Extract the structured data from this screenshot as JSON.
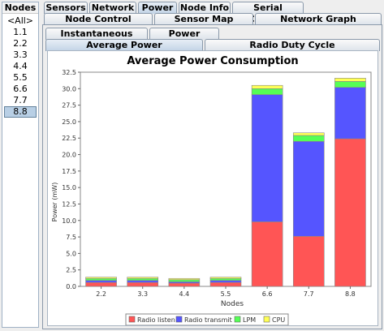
{
  "nodes": {
    "header": "Nodes",
    "items": [
      "<All>",
      "1.1",
      "2.2",
      "3.3",
      "4.4",
      "5.5",
      "6.6",
      "7.7",
      "8.8"
    ],
    "selected": "8.8"
  },
  "tabs_row1": [
    "Sensors",
    "Network",
    "Power",
    "Node Info",
    "Serial Console"
  ],
  "tabs_row1_active": "Power",
  "tabs_row2": [
    "Node Control",
    "Sensor Map",
    "Network Graph"
  ],
  "power_tabs_row1": [
    "Instantaneous Power",
    "Power History"
  ],
  "power_tabs_row2": [
    "Average Power",
    "Radio Duty Cycle"
  ],
  "power_tabs_active": "Average Power",
  "colors": {
    "radio_listen": "#ff5555",
    "radio_transmit": "#5555ff",
    "lpm": "#55ff55",
    "cpu": "#ffff55"
  },
  "chart_data": {
    "type": "bar",
    "title": "Average Power Consumption",
    "xlabel": "Nodes",
    "ylabel": "Power (mW)",
    "categories": [
      "2.2",
      "3.3",
      "4.4",
      "5.5",
      "6.6",
      "7.7",
      "8.8"
    ],
    "stacked": true,
    "ylim": [
      0,
      32.5
    ],
    "yticks": [
      "0.0",
      "2.5",
      "5.0",
      "7.5",
      "10.0",
      "12.5",
      "15.0",
      "17.5",
      "20.0",
      "22.5",
      "25.0",
      "27.5",
      "30.0",
      "32.5"
    ],
    "series": [
      {
        "name": "Radio listen",
        "values": [
          0.6,
          0.6,
          0.5,
          0.6,
          9.8,
          7.6,
          22.4
        ]
      },
      {
        "name": "Radio transmit",
        "values": [
          0.3,
          0.3,
          0.2,
          0.3,
          19.3,
          14.4,
          7.8
        ]
      },
      {
        "name": "LPM",
        "values": [
          0.3,
          0.3,
          0.3,
          0.3,
          0.9,
          0.9,
          0.9
        ]
      },
      {
        "name": "CPU",
        "values": [
          0.2,
          0.2,
          0.2,
          0.2,
          0.5,
          0.4,
          0.5
        ]
      }
    ],
    "legend_position": "bottom"
  }
}
